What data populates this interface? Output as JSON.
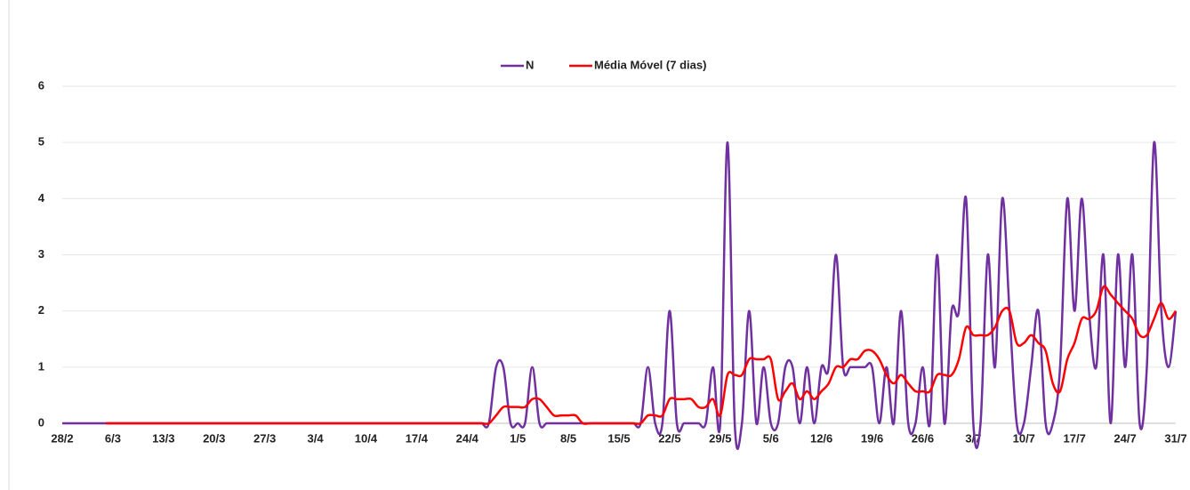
{
  "chart_data": {
    "type": "line",
    "categories": [
      "28/2",
      null,
      null,
      null,
      null,
      null,
      null,
      "6/3",
      null,
      null,
      null,
      null,
      null,
      null,
      "13/3",
      null,
      null,
      null,
      null,
      null,
      null,
      "20/3",
      null,
      null,
      null,
      null,
      null,
      null,
      "27/3",
      null,
      null,
      null,
      null,
      null,
      null,
      "3/4",
      null,
      null,
      null,
      null,
      null,
      null,
      "10/4",
      null,
      null,
      null,
      null,
      null,
      null,
      "17/4",
      null,
      null,
      null,
      null,
      null,
      null,
      "24/4",
      null,
      null,
      null,
      null,
      null,
      null,
      "1/5",
      null,
      null,
      null,
      null,
      null,
      null,
      "8/5",
      null,
      null,
      null,
      null,
      null,
      null,
      "15/5",
      null,
      null,
      null,
      null,
      null,
      null,
      "22/5",
      null,
      null,
      null,
      null,
      null,
      null,
      "29/5",
      null,
      null,
      null,
      null,
      null,
      null,
      "5/6",
      null,
      null,
      null,
      null,
      null,
      null,
      "12/6",
      null,
      null,
      null,
      null,
      null,
      null,
      "19/6",
      null,
      null,
      null,
      null,
      null,
      null,
      "26/6",
      null,
      null,
      null,
      null,
      null,
      null,
      "3/7",
      null,
      null,
      null,
      null,
      null,
      null,
      "10/7",
      null,
      null,
      null,
      null,
      null,
      null,
      "17/7",
      null,
      null,
      null,
      null,
      null,
      null,
      "24/7",
      null,
      null,
      null,
      null,
      null,
      null,
      "31/7"
    ],
    "series": [
      {
        "name": "N",
        "color": "#7030a0",
        "values": [
          0,
          0,
          0,
          0,
          0,
          0,
          0,
          0,
          0,
          0,
          0,
          0,
          0,
          0,
          0,
          0,
          0,
          0,
          0,
          0,
          0,
          0,
          0,
          0,
          0,
          0,
          0,
          0,
          0,
          0,
          0,
          0,
          0,
          0,
          0,
          0,
          0,
          0,
          0,
          0,
          0,
          0,
          0,
          0,
          0,
          0,
          0,
          0,
          0,
          0,
          0,
          0,
          0,
          0,
          0,
          0,
          0,
          0,
          0,
          0,
          1,
          1,
          0,
          0,
          0,
          1,
          0,
          0,
          0,
          0,
          0,
          0,
          0,
          0,
          0,
          0,
          0,
          0,
          0,
          0,
          0,
          1,
          0,
          0,
          2,
          0,
          0,
          0,
          0,
          0,
          1,
          0,
          5,
          0,
          0,
          2,
          0,
          1,
          0,
          0,
          1,
          1,
          0,
          1,
          0,
          1,
          1,
          3,
          1,
          1,
          1,
          1,
          1,
          0,
          1,
          0,
          2,
          0,
          0,
          1,
          0,
          3,
          0,
          2,
          2,
          4,
          0,
          0,
          3,
          1,
          4,
          2,
          0,
          0,
          1,
          2,
          0,
          0,
          1,
          4,
          2,
          4,
          2,
          1,
          3,
          0,
          3,
          1,
          3,
          0,
          1,
          5,
          2,
          1,
          2
        ]
      },
      {
        "name": "Média Móvel (7 dias)",
        "color": "#ff0000",
        "values": [
          null,
          null,
          null,
          null,
          null,
          null,
          0,
          0,
          0,
          0,
          0,
          0,
          0,
          0,
          0,
          0,
          0,
          0,
          0,
          0,
          0,
          0,
          0,
          0,
          0,
          0,
          0,
          0,
          0,
          0,
          0,
          0,
          0,
          0,
          0,
          0,
          0,
          0,
          0,
          0,
          0,
          0,
          0,
          0,
          0,
          0,
          0,
          0,
          0,
          0,
          0,
          0,
          0,
          0,
          0,
          0,
          0,
          0,
          0,
          0,
          0.14,
          0.29,
          0.29,
          0.29,
          0.29,
          0.43,
          0.43,
          0.29,
          0.14,
          0.14,
          0.14,
          0.14,
          0,
          0,
          0,
          0,
          0,
          0,
          0,
          0,
          0,
          0.14,
          0.14,
          0.14,
          0.43,
          0.43,
          0.43,
          0.43,
          0.29,
          0.29,
          0.43,
          0.14,
          0.86,
          0.86,
          0.86,
          1.14,
          1.14,
          1.14,
          1.14,
          0.43,
          0.57,
          0.71,
          0.43,
          0.57,
          0.43,
          0.57,
          0.71,
          1,
          1,
          1.14,
          1.14,
          1.29,
          1.29,
          1.14,
          0.86,
          0.71,
          0.86,
          0.71,
          0.57,
          0.57,
          0.57,
          0.86,
          0.86,
          0.86,
          1.14,
          1.71,
          1.57,
          1.57,
          1.57,
          1.71,
          2,
          2,
          1.43,
          1.43,
          1.57,
          1.43,
          1.29,
          0.71,
          0.57,
          1.14,
          1.43,
          1.86,
          1.86,
          2,
          2.43,
          2.29,
          2.14,
          2,
          1.86,
          1.57,
          1.57,
          1.86,
          2.14,
          1.86,
          2
        ]
      }
    ],
    "ylim": [
      0,
      6
    ],
    "yticks": [
      0,
      1,
      2,
      3,
      4,
      5,
      6
    ],
    "grid": true,
    "legend": "top"
  }
}
